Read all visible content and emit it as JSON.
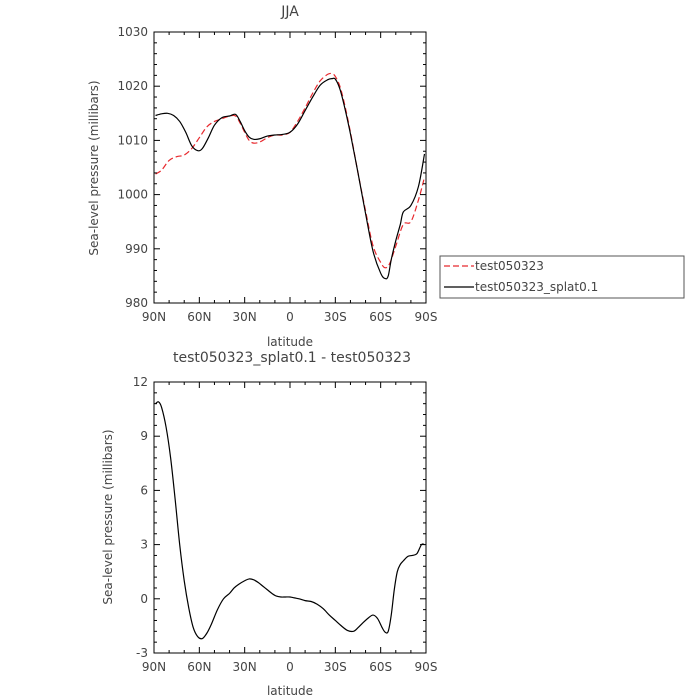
{
  "chart_data": [
    {
      "type": "line",
      "title": "JJA",
      "xlabel": "latitude",
      "ylabel": "Sea-level pressure (millibars)",
      "xlim": [
        90,
        -90
      ],
      "ylim": [
        980,
        1030
      ],
      "xticks": [
        90,
        60,
        30,
        0,
        -30,
        -60,
        -90
      ],
      "xtick_labels": [
        "90N",
        "60N",
        "30N",
        "0",
        "30S",
        "60S",
        "90S"
      ],
      "yticks": [
        980,
        990,
        1000,
        1010,
        1020,
        1030
      ],
      "ytick_labels": [
        "980",
        "990",
        "1000",
        "1010",
        "1020",
        "1030"
      ],
      "legend_position": "outside-right",
      "series": [
        {
          "name": "test050323",
          "color": "#e8292e",
          "style": "dashed",
          "x": [
            89,
            85,
            80,
            75,
            70,
            65,
            60,
            55,
            50,
            45,
            40,
            36,
            33,
            30,
            27,
            24,
            20,
            15,
            10,
            5,
            0,
            -5,
            -10,
            -15,
            -20,
            -25,
            -28,
            -30,
            -33,
            -36,
            -40,
            -45,
            -50,
            -55,
            -60,
            -63,
            -66,
            -70,
            -75,
            -80,
            -85,
            -89
          ],
          "y": [
            1003.8,
            1004.5,
            1006.3,
            1007.0,
            1007.3,
            1008.5,
            1010.5,
            1012.5,
            1013.5,
            1014.0,
            1014.5,
            1014.5,
            1013.2,
            1011.5,
            1010.0,
            1009.5,
            1009.7,
            1010.5,
            1011.0,
            1011.0,
            1011.5,
            1013.5,
            1016.0,
            1018.7,
            1021.0,
            1022.2,
            1022.3,
            1021.8,
            1020.0,
            1016.8,
            1011.5,
            1004.0,
            997.0,
            990.5,
            987.5,
            986.5,
            987.3,
            990.5,
            994.5,
            995.0,
            999.0,
            1003.2
          ]
        },
        {
          "name": "test050323_splat0.1",
          "color": "#000000",
          "style": "solid",
          "x": [
            89,
            85,
            81,
            77,
            73,
            69,
            65,
            61,
            58,
            54,
            50,
            45,
            40,
            36,
            33,
            30,
            27,
            24,
            20,
            15,
            10,
            5,
            0,
            -5,
            -10,
            -15,
            -20,
            -25,
            -28,
            -30,
            -33,
            -36,
            -40,
            -45,
            -50,
            -55,
            -60,
            -63,
            -65,
            -67,
            -70,
            -73,
            -75,
            -80,
            -85,
            -89
          ],
          "y": [
            1014.6,
            1014.9,
            1015.0,
            1014.6,
            1013.5,
            1011.5,
            1009.0,
            1008.1,
            1008.5,
            1010.5,
            1012.8,
            1014.2,
            1014.5,
            1014.8,
            1013.5,
            1011.8,
            1010.6,
            1010.2,
            1010.3,
            1010.8,
            1011.0,
            1011.1,
            1011.5,
            1013.0,
            1015.5,
            1018.0,
            1020.2,
            1021.2,
            1021.4,
            1021.3,
            1019.5,
            1016.3,
            1011.2,
            1004.0,
            996.5,
            989.5,
            985.5,
            984.5,
            985.0,
            988.0,
            991.5,
            994.5,
            996.8,
            998.0,
            1001.5,
            1007.5
          ]
        }
      ]
    },
    {
      "type": "line",
      "title": "test050323_splat0.1 - test050323",
      "xlabel": "latitude",
      "ylabel": "Sea-level pressure (millibars)",
      "xlim": [
        90,
        -90
      ],
      "ylim": [
        -3,
        12
      ],
      "xticks": [
        90,
        60,
        30,
        0,
        -30,
        -60,
        -90
      ],
      "xtick_labels": [
        "90N",
        "60N",
        "30N",
        "0",
        "30S",
        "60S",
        "90S"
      ],
      "yticks": [
        -3,
        0,
        3,
        6,
        9,
        12
      ],
      "ytick_labels": [
        "-3",
        "0",
        "3",
        "6",
        "9",
        "12"
      ],
      "series": [
        {
          "color": "#000000",
          "style": "solid",
          "x": [
            89,
            87,
            85,
            82,
            79,
            76,
            73,
            70,
            67,
            64,
            61,
            58,
            55,
            52,
            48,
            44,
            40,
            37,
            34,
            30,
            27,
            24,
            21,
            18,
            15,
            12,
            9,
            6,
            3,
            0,
            -3,
            -6,
            -10,
            -14,
            -18,
            -22,
            -26,
            -30,
            -34,
            -38,
            -42,
            -45,
            -48,
            -52,
            -55,
            -58,
            -61,
            -63,
            -65,
            -67,
            -69,
            -71,
            -73,
            -75,
            -78,
            -81,
            -84,
            -87,
            -89
          ],
          "y": [
            10.8,
            10.9,
            10.6,
            9.5,
            7.8,
            5.5,
            3.0,
            1.0,
            -0.5,
            -1.6,
            -2.1,
            -2.2,
            -1.9,
            -1.4,
            -0.6,
            0.0,
            0.3,
            0.6,
            0.8,
            1.0,
            1.1,
            1.05,
            0.9,
            0.7,
            0.5,
            0.3,
            0.15,
            0.1,
            0.1,
            0.1,
            0.05,
            0.0,
            -0.1,
            -0.15,
            -0.3,
            -0.55,
            -0.9,
            -1.2,
            -1.5,
            -1.75,
            -1.8,
            -1.6,
            -1.35,
            -1.05,
            -0.9,
            -1.1,
            -1.6,
            -1.85,
            -1.8,
            -0.9,
            0.5,
            1.5,
            1.9,
            2.1,
            2.35,
            2.4,
            2.5,
            3.0,
            3.0
          ]
        }
      ]
    }
  ]
}
